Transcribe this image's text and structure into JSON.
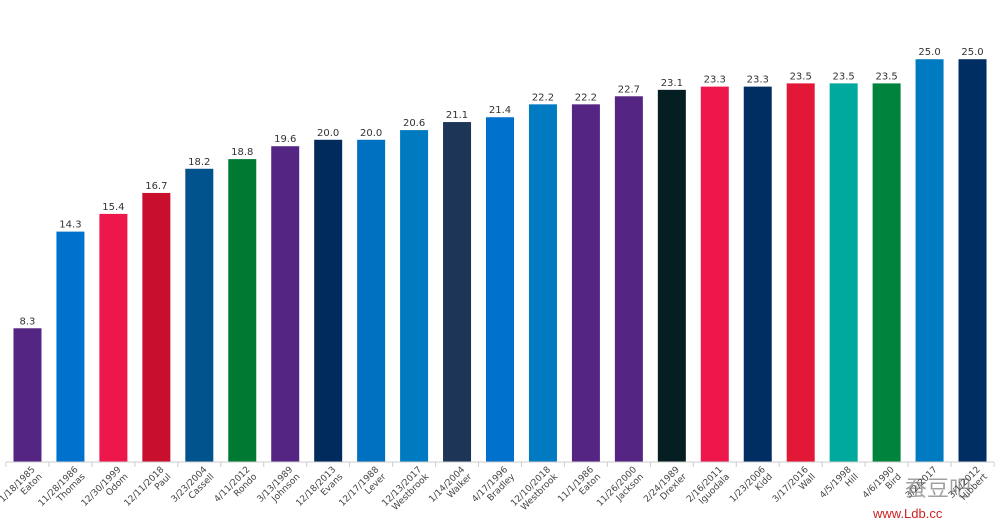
{
  "chart_data": {
    "type": "bar",
    "title": "",
    "xlabel": "",
    "ylabel": "",
    "ylim": [
      0,
      27
    ],
    "grid": false,
    "legend": "none",
    "categories": [
      [
        "1/18/1985",
        "Eaton"
      ],
      [
        "11/28/1986",
        "Thomas"
      ],
      [
        "12/30/1999",
        "Odom"
      ],
      [
        "12/11/2018",
        "Paul"
      ],
      [
        "3/23/2004",
        "Cassell"
      ],
      [
        "4/11/2012",
        "Rondo"
      ],
      [
        "3/13/1989",
        "Johnson"
      ],
      [
        "12/18/2013",
        "Evans"
      ],
      [
        "12/17/1988",
        "Lever"
      ],
      [
        "12/13/2017",
        "Westbrook"
      ],
      [
        "1/14/2004",
        "Walker"
      ],
      [
        "4/17/1996",
        "Bradley"
      ],
      [
        "12/10/2018",
        "Westbrook"
      ],
      [
        "11/1/1986",
        "Eaton"
      ],
      [
        "11/26/2000",
        "Jackson"
      ],
      [
        "2/24/1989",
        "Drexler"
      ],
      [
        "2/16/2011",
        "Iguodala"
      ],
      [
        "1/23/2006",
        "Kidd"
      ],
      [
        "3/17/2016",
        "Wall"
      ],
      [
        "4/5/1998",
        "Hill"
      ],
      [
        "4/6/1990",
        "Bird"
      ],
      [
        "3/2/2017",
        ""
      ],
      [
        "3/1/2012",
        "Hibbert"
      ]
    ],
    "values": [
      8.3,
      14.3,
      15.4,
      16.7,
      18.2,
      18.8,
      19.6,
      20.0,
      20.0,
      20.6,
      21.1,
      21.4,
      22.2,
      22.2,
      22.7,
      23.1,
      23.3,
      23.3,
      23.5,
      23.5,
      23.5,
      25.0,
      25.0
    ],
    "value_labels": [
      "8.3",
      "14.3",
      "15.4",
      "16.7",
      "18.2",
      "18.8",
      "19.6",
      "20.0",
      "20.0",
      "20.6",
      "21.1",
      "21.4",
      "22.2",
      "22.2",
      "22.7",
      "23.1",
      "23.3",
      "23.3",
      "23.5",
      "23.5",
      "23.5",
      "25.0",
      "25.0"
    ],
    "colors": [
      "#552583",
      "#0072CE",
      "#ED174C",
      "#C8102E",
      "#00538C",
      "#007A33",
      "#552583",
      "#002B5C",
      "#0070C0",
      "#007AC1",
      "#1D3557",
      "#0072CE",
      "#007AC1",
      "#552583",
      "#552583",
      "#041E22",
      "#ED174C",
      "#002D62",
      "#E31837",
      "#00A99D",
      "#00843D",
      "#007AC1",
      "#002D62"
    ]
  },
  "watermark": {
    "url": "www.Ldb.cc",
    "cn": "蚕豆吧"
  }
}
